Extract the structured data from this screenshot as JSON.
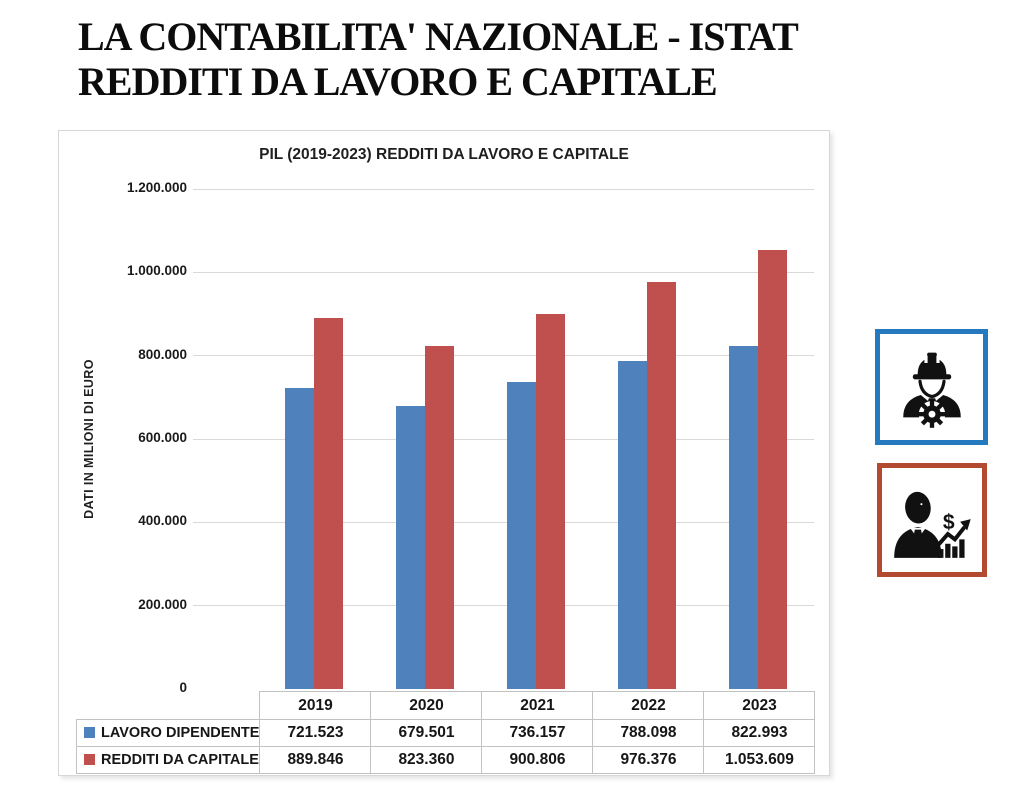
{
  "header": {
    "title_line1": "LA CONTABILITA' NAZIONALE - ISTAT",
    "title_line2": "REDDITI DA LAVORO E CAPITALE"
  },
  "chart_data": {
    "type": "bar",
    "title": "PIL (2019-2023) REDDITI DA LAVORO E CAPITALE",
    "xlabel": "",
    "ylabel": "DATI IN MILIONI DI EURO",
    "categories": [
      "2019",
      "2020",
      "2021",
      "2022",
      "2023"
    ],
    "series": [
      {
        "name": "LAVORO DIPENDENTE",
        "color": "#4f81bd",
        "values": [
          721523,
          679501,
          736157,
          788098,
          822993
        ],
        "labels": [
          "721.523",
          "679.501",
          "736.157",
          "788.098",
          "822.993"
        ]
      },
      {
        "name": "REDDITI DA CAPITALE",
        "color": "#c0504d",
        "values": [
          889846,
          823360,
          900806,
          976376,
          1053609
        ],
        "labels": [
          "889.846",
          "823.360",
          "900.806",
          "976.376",
          "1.053.609"
        ]
      }
    ],
    "ylim": [
      0,
      1200000
    ],
    "ytick_step": 200000,
    "ytick_labels": [
      "0",
      "200.000",
      "400.000",
      "600.000",
      "800.000",
      "1.000.000",
      "1.200.000"
    ],
    "grid": true,
    "legend_position": "table-bottom"
  },
  "icons": {
    "worker": {
      "name": "engineer-worker-icon",
      "border_color": "#2579be",
      "glyph_color": "#111111"
    },
    "finance": {
      "name": "businessman-growth-icon",
      "border_color": "#b34a2f",
      "glyph_color": "#111111"
    }
  }
}
